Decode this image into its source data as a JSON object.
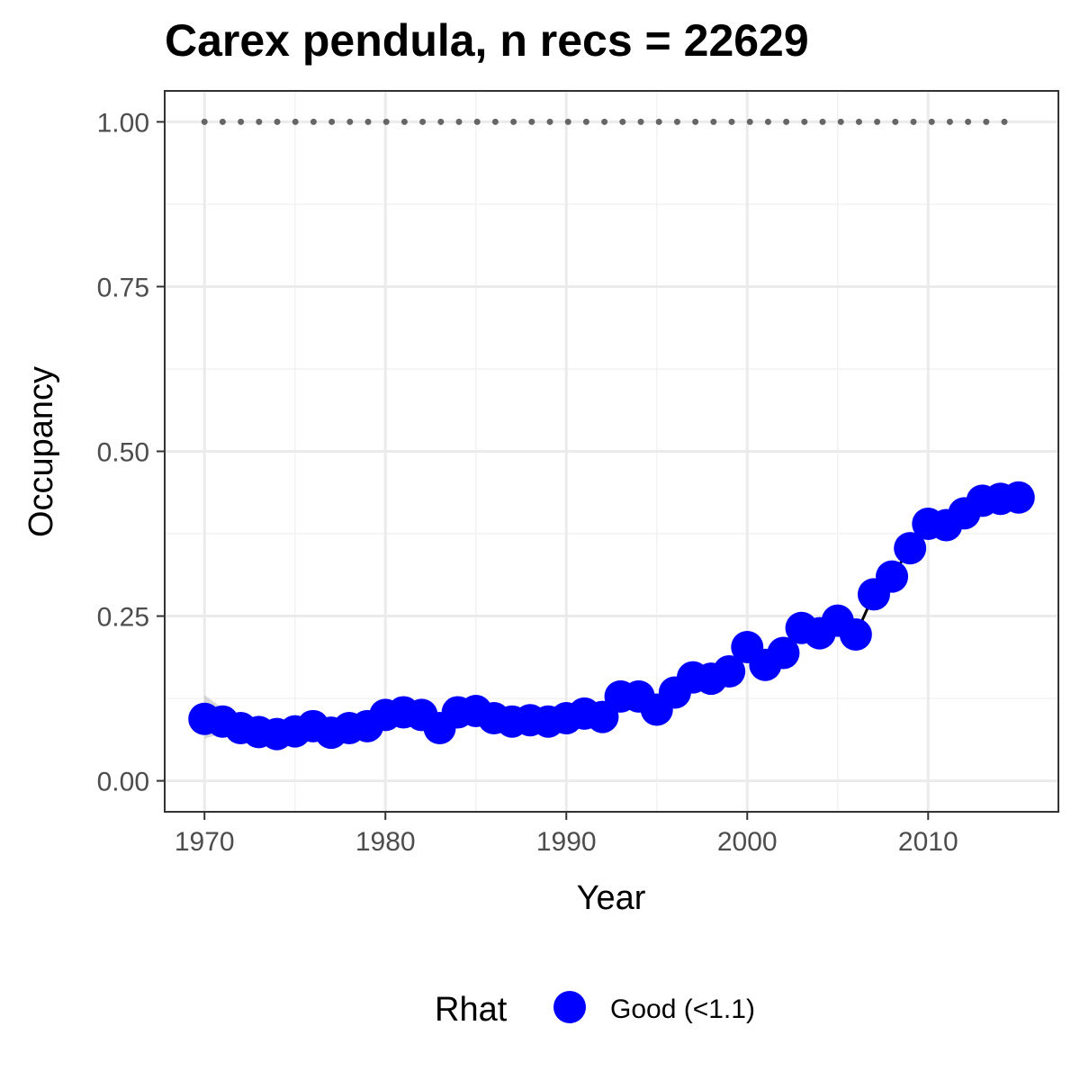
{
  "chart_data": {
    "type": "scatter",
    "title": "Carex pendula, n recs = 22629",
    "xlabel": "Year",
    "ylabel": "Occupancy",
    "xlim": [
      1967.8,
      2017.2
    ],
    "ylim": [
      -0.047,
      1.047
    ],
    "x_ticks": [
      1970,
      1980,
      1990,
      2000,
      2010
    ],
    "x_tick_labels": [
      "1970",
      "1980",
      "1990",
      "2000",
      "2010"
    ],
    "y_ticks": [
      0,
      0.25,
      0.5,
      0.75,
      1.0
    ],
    "y_tick_labels": [
      "0.00",
      "0.25",
      "0.50",
      "0.75",
      "1.00"
    ],
    "grid": true,
    "legend": {
      "title": "Rhat",
      "position": "bottom",
      "entries": [
        {
          "label": "Good (<1.1)",
          "color": "#0000ff"
        }
      ]
    },
    "reference_line": {
      "y": 1.0,
      "style": "dotted",
      "color": "#666666"
    },
    "series": [
      {
        "name": "Good (<1.1)",
        "color": "#0000ff",
        "x": [
          1970,
          1971,
          1972,
          1973,
          1974,
          1975,
          1976,
          1977,
          1978,
          1979,
          1980,
          1981,
          1982,
          1983,
          1984,
          1985,
          1986,
          1987,
          1988,
          1989,
          1990,
          1991,
          1992,
          1993,
          1994,
          1995,
          1996,
          1997,
          1998,
          1999,
          2000,
          2001,
          2002,
          2003,
          2004,
          2005,
          2006,
          2007,
          2008,
          2009,
          2010,
          2011,
          2012,
          2013,
          2014,
          2015
        ],
        "y": [
          0.094,
          0.09,
          0.08,
          0.074,
          0.071,
          0.075,
          0.083,
          0.073,
          0.08,
          0.083,
          0.1,
          0.104,
          0.1,
          0.08,
          0.104,
          0.106,
          0.095,
          0.09,
          0.092,
          0.09,
          0.095,
          0.102,
          0.097,
          0.128,
          0.128,
          0.108,
          0.134,
          0.157,
          0.155,
          0.166,
          0.203,
          0.176,
          0.194,
          0.232,
          0.224,
          0.243,
          0.222,
          0.283,
          0.31,
          0.353,
          0.39,
          0.388,
          0.406,
          0.425,
          0.428,
          0.43
        ]
      }
    ],
    "confidence_band": {
      "x": [
        1970,
        1971,
        1972
      ],
      "lower": [
        0.064,
        0.072,
        0.07
      ],
      "upper": [
        0.13,
        0.11,
        0.092
      ],
      "color": "#bdbdbd"
    }
  }
}
